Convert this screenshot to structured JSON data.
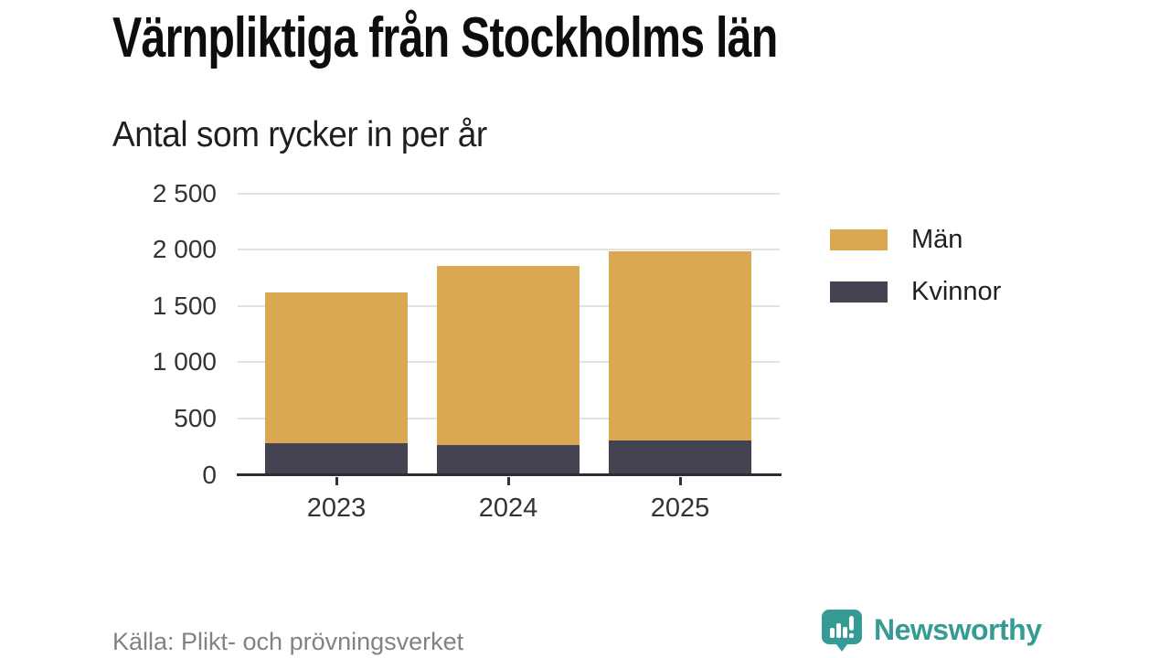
{
  "title": "Värnpliktiga från Stockholms län",
  "subtitle": "Antal som rycker in per år",
  "source": "Källa: Plikt- och prövningsverket",
  "branding": {
    "name": "Newsworthy",
    "color": "#359b94"
  },
  "colors": {
    "men": "#d9a851",
    "women": "#434351",
    "grid": "#e2e2e2",
    "axis": "#2c2c35",
    "text": "#333333",
    "source_text": "#828282"
  },
  "chart_data": {
    "type": "bar",
    "stacked": true,
    "title": "Värnpliktiga från Stockholms län",
    "subtitle": "Antal som rycker in per år",
    "categories": [
      "2023",
      "2024",
      "2025"
    ],
    "series": [
      {
        "name": "Män",
        "color": "#d9a851",
        "values": [
          1340,
          1595,
          1685
        ]
      },
      {
        "name": "Kvinnor",
        "color": "#434351",
        "values": [
          280,
          265,
          305
        ]
      }
    ],
    "totals": [
      1620,
      1860,
      1990
    ],
    "xlabel": "",
    "ylabel": "",
    "ylim": [
      0,
      2500
    ],
    "yticks": [
      0,
      500,
      1000,
      1500,
      2000,
      2500
    ],
    "ytick_labels": [
      "0",
      "500",
      "1 000",
      "1 500",
      "2 000",
      "2 500"
    ],
    "grid": "horizontal",
    "legend_position": "right"
  }
}
